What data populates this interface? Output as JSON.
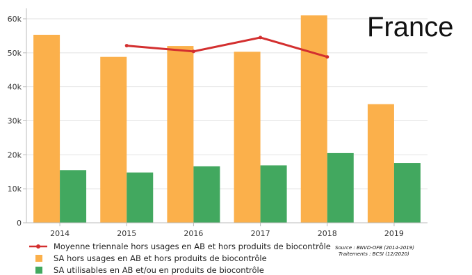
{
  "region_label": "France",
  "source": {
    "line1": "Source : BNVD-OFB (2014-2019)",
    "line2": "Traitements : BCSI (12/2020)"
  },
  "colors": {
    "orange": "#FBB04B",
    "green": "#42A85F",
    "line": "#D32F2F",
    "grid": "#E2E2E2",
    "axis": "#BBBBBB"
  },
  "chart_data": {
    "type": "bar",
    "categories": [
      "2014",
      "2015",
      "2016",
      "2017",
      "2018",
      "2019"
    ],
    "ylim": [
      0,
      60000
    ],
    "yticks": [
      0,
      10000,
      20000,
      30000,
      40000,
      50000,
      60000
    ],
    "ytick_labels": [
      "0",
      "10k",
      "20k",
      "30k",
      "40k",
      "50k",
      "60k"
    ],
    "grid": true,
    "legend_position": "bottom-left",
    "series": [
      {
        "name": "SA hors usages en AB et hors produits de biocontrôle",
        "kind": "bar",
        "color": "#FBB04B",
        "values": [
          55300,
          48800,
          52000,
          50300,
          61000,
          34900
        ]
      },
      {
        "name": "SA utilisables en AB et/ou en produits de biocontrôle",
        "kind": "bar",
        "color": "#42A85F",
        "values": [
          15500,
          14800,
          16600,
          16900,
          20500,
          17600
        ]
      },
      {
        "name": "Moyenne triennale hors usages en AB et hors produits de biocontrôle",
        "kind": "line",
        "color": "#D32F2F",
        "values": [
          null,
          52100,
          50400,
          54500,
          48800,
          null
        ]
      }
    ]
  }
}
